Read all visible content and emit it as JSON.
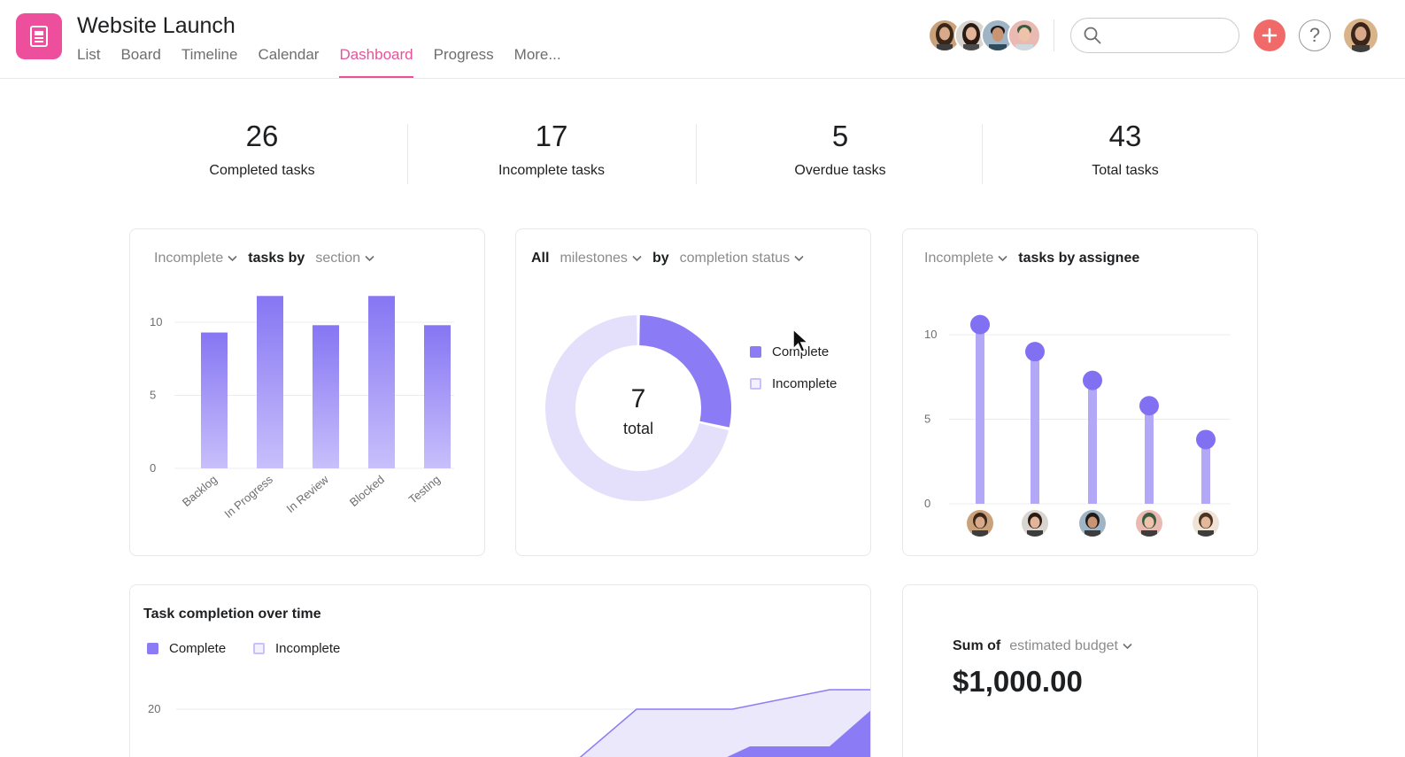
{
  "header": {
    "project_title": "Website Launch",
    "project_icon": "document-list-icon",
    "tabs": [
      {
        "label": "List",
        "active": false
      },
      {
        "label": "Board",
        "active": false
      },
      {
        "label": "Timeline",
        "active": false
      },
      {
        "label": "Calendar",
        "active": false
      },
      {
        "label": "Dashboard",
        "active": true
      },
      {
        "label": "Progress",
        "active": false
      },
      {
        "label": "More...",
        "active": false
      }
    ],
    "search": {
      "value": "",
      "placeholder": ""
    },
    "add_icon": "plus-icon",
    "help_label": "?"
  },
  "stats": [
    {
      "value": "26",
      "label": "Completed tasks"
    },
    {
      "value": "17",
      "label": "Incomplete tasks"
    },
    {
      "value": "5",
      "label": "Overdue tasks"
    },
    {
      "value": "43",
      "label": "Total tasks"
    }
  ],
  "cards": {
    "section_card": {
      "filter": "Incomplete",
      "middle": "tasks by",
      "group": "section"
    },
    "milestone_card": {
      "scope": "All",
      "type": "milestones",
      "by": "by",
      "group": "completion status",
      "total_value": "7",
      "total_label": "total"
    },
    "assignee_card": {
      "filter": "Incomplete",
      "rest": "tasks by assignee"
    },
    "completion_card": {
      "title": "Task completion over time",
      "legend_complete": "Complete",
      "legend_incomplete": "Incomplete"
    },
    "budget_card": {
      "sum_label": "Sum of",
      "field": "estimated budget",
      "value": "$1,000.00"
    }
  },
  "chart_data": [
    {
      "type": "bar",
      "categories": [
        "Backlog",
        "In Progress",
        "In Review",
        "Blocked",
        "Testing"
      ],
      "values": [
        9.3,
        11.8,
        9.8,
        11.8,
        9.8
      ],
      "yticks": [
        "0",
        "5",
        "10"
      ],
      "ylim": [
        0,
        12
      ]
    },
    {
      "type": "pie",
      "labels": [
        "Complete",
        "Incomplete"
      ],
      "values": [
        2,
        5
      ]
    },
    {
      "type": "scatter",
      "categories": [
        "assignee-1",
        "assignee-2",
        "assignee-3",
        "assignee-4",
        "assignee-5"
      ],
      "values": [
        10.6,
        9.0,
        7.3,
        5.8,
        3.8
      ],
      "yticks": [
        "0",
        "5",
        "10"
      ],
      "ylim": [
        0,
        11
      ]
    },
    {
      "type": "area",
      "series": [
        {
          "name": "Complete"
        },
        {
          "name": "Incomplete"
        }
      ],
      "yticks": [
        "20"
      ]
    }
  ],
  "colors": {
    "accent_pink": "#e8529a",
    "chart_purple": "#8b7cf6",
    "chart_light": "#e4e0fb",
    "add_button": "#f06a6a"
  }
}
